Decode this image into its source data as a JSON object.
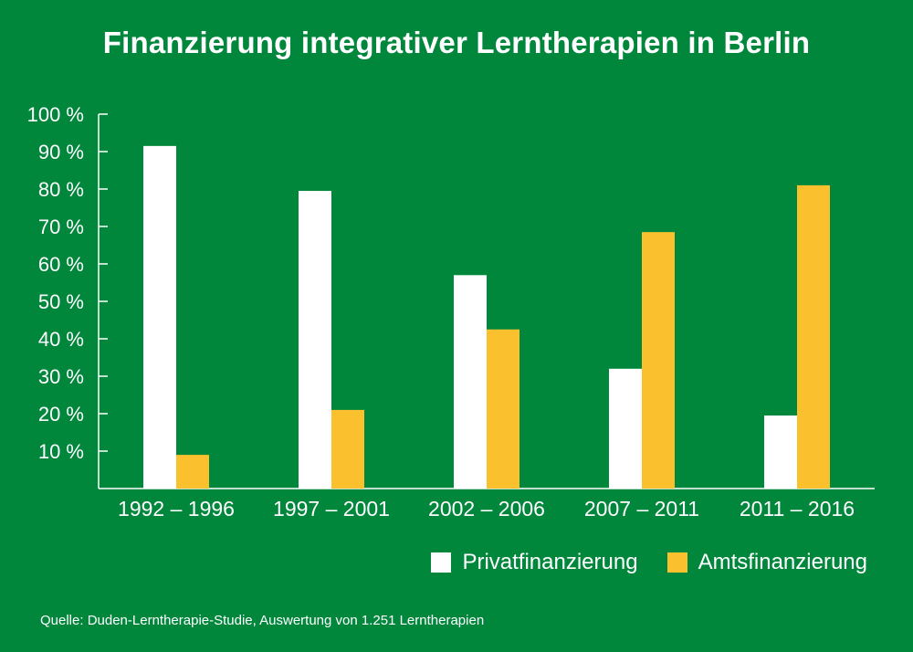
{
  "chart_data": {
    "type": "bar",
    "title": "Finanzierung integrativer Lerntherapien in Berlin",
    "categories": [
      "1992 – 1996",
      "1997 – 2001",
      "2002 – 2006",
      "2007 – 2011",
      "2011 – 2016"
    ],
    "series": [
      {
        "name": "Privatfinanzierung",
        "color": "#ffffff",
        "values": [
          91.5,
          79.5,
          57,
          32,
          19.5
        ]
      },
      {
        "name": "Amtsfinanzierung",
        "color": "#fbc02d",
        "values": [
          9,
          21,
          42.5,
          68.5,
          81
        ]
      }
    ],
    "yticks": [
      "10 %",
      "20 %",
      "30 %",
      "40 %",
      "50 %",
      "60 %",
      "70 %",
      "80 %",
      "90 %",
      "100 %"
    ],
    "ytick_values": [
      10,
      20,
      30,
      40,
      50,
      60,
      70,
      80,
      90,
      100
    ],
    "ylim": [
      0,
      100
    ],
    "grid": false,
    "legend_position": "bottom-right"
  },
  "source": "Quelle: Duden-Lerntherapie-Studie, Auswertung von 1.251 Lerntherapien"
}
